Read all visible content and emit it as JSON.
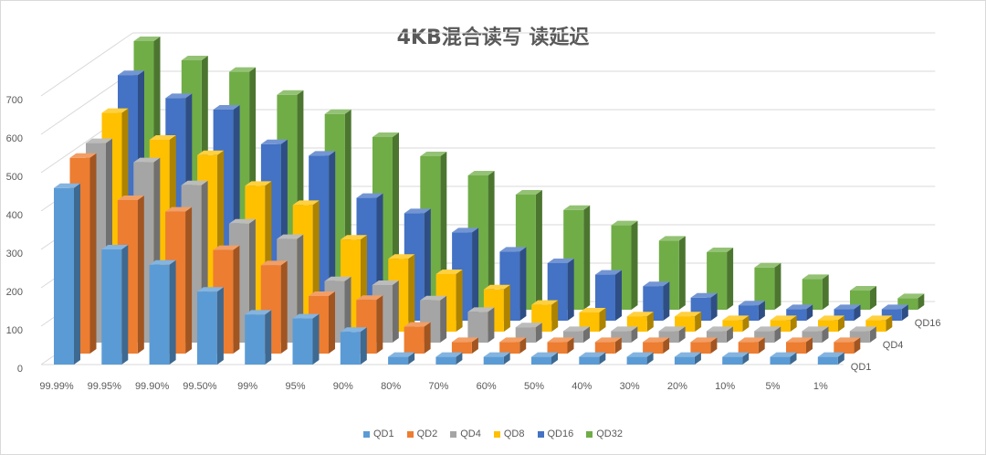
{
  "chart_data": {
    "type": "bar",
    "subtype": "3d-column",
    "title": "4KB混合读写 读延迟",
    "categories": [
      "99.99%",
      "99.95%",
      "99.90%",
      "99.50%",
      "99%",
      "95%",
      "90%",
      "80%",
      "70%",
      "60%",
      "50%",
      "40%",
      "30%",
      "20%",
      "10%",
      "5%",
      "1%"
    ],
    "y_ticks": [
      "0",
      "100",
      "200",
      "300",
      "400",
      "500",
      "600",
      "700"
    ],
    "ylim": [
      0,
      700
    ],
    "depth_labels": [
      "QD1",
      "QD4",
      "QD16"
    ],
    "series": [
      {
        "name": "QD1",
        "color": "#5b9bd5",
        "values": [
          460,
          300,
          260,
          190,
          130,
          120,
          85,
          20,
          20,
          20,
          20,
          20,
          20,
          20,
          20,
          20,
          20
        ]
      },
      {
        "name": "QD2",
        "color": "#ed7d31",
        "values": [
          510,
          400,
          370,
          270,
          230,
          150,
          140,
          70,
          30,
          30,
          30,
          30,
          30,
          30,
          30,
          30,
          30
        ]
      },
      {
        "name": "QD4",
        "color": "#a5a5a5",
        "values": [
          520,
          470,
          410,
          310,
          270,
          160,
          150,
          110,
          80,
          40,
          30,
          30,
          30,
          30,
          30,
          30,
          30
        ]
      },
      {
        "name": "QD8",
        "color": "#ffc000",
        "values": [
          570,
          500,
          460,
          380,
          330,
          240,
          190,
          150,
          110,
          70,
          50,
          40,
          40,
          30,
          30,
          30,
          30
        ]
      },
      {
        "name": "QD16",
        "color": "#4472c4",
        "values": [
          640,
          580,
          550,
          460,
          430,
          320,
          280,
          230,
          180,
          150,
          120,
          90,
          60,
          40,
          30,
          30,
          30
        ]
      },
      {
        "name": "QD32",
        "color": "#70ad47",
        "values": [
          700,
          650,
          620,
          560,
          510,
          450,
          400,
          350,
          300,
          260,
          220,
          180,
          150,
          110,
          80,
          50,
          30
        ]
      }
    ],
    "legend_position": "bottom",
    "grid": true
  }
}
